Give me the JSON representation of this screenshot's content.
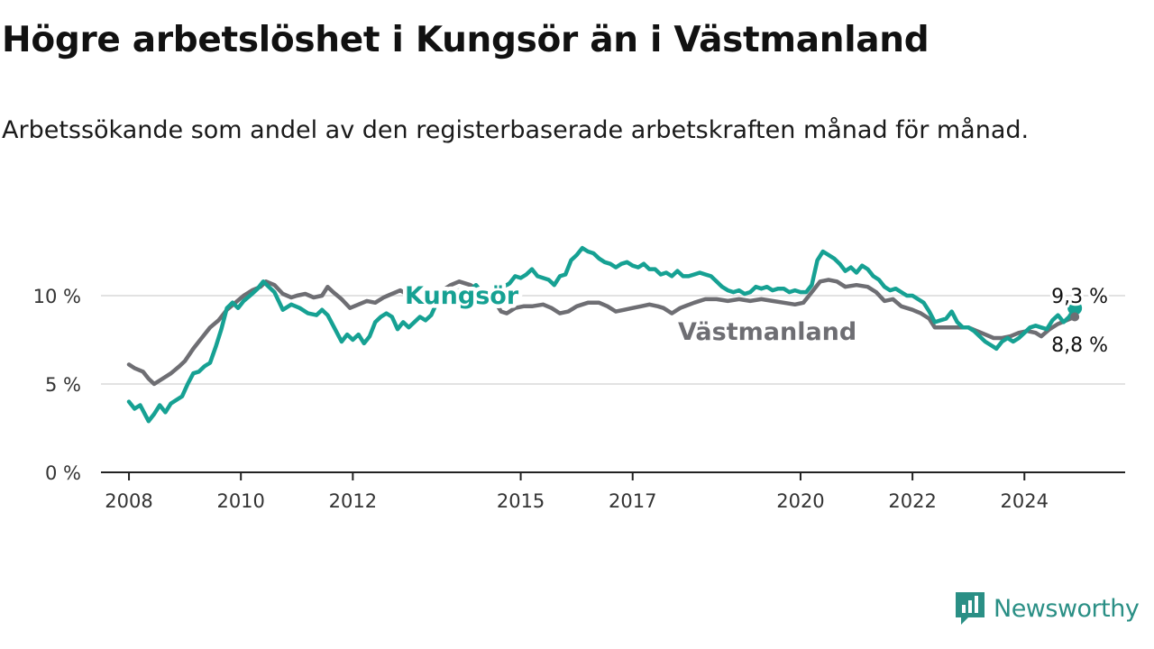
{
  "header": {
    "title": "Högre arbetslöshet i Kungsör än i Västmanland",
    "subtitle": "Arbetssökande som andel av den registerbaserade arbetskraften månad för månad."
  },
  "brand": {
    "name": "Newsworthy",
    "icon": "newsworthy-logo-icon",
    "color": "#2a8f85"
  },
  "chart_data": {
    "type": "line",
    "xlim": [
      2007.5,
      2025.8
    ],
    "ylim": [
      0,
      12.5
    ],
    "grid": true,
    "x_ticks": [
      {
        "value": 2008,
        "label": "2008"
      },
      {
        "value": 2010,
        "label": "2010"
      },
      {
        "value": 2012,
        "label": "2012"
      },
      {
        "value": 2015,
        "label": "2015"
      },
      {
        "value": 2017,
        "label": "2017"
      },
      {
        "value": 2020,
        "label": "2020"
      },
      {
        "value": 2022,
        "label": "2022"
      },
      {
        "value": 2024,
        "label": "2024"
      }
    ],
    "y_ticks": [
      {
        "value": 0,
        "label": "0 %"
      },
      {
        "value": 5,
        "label": "5 %"
      },
      {
        "value": 10,
        "label": "10 %"
      }
    ],
    "series": [
      {
        "name": "Västmanland",
        "color": "#6e6e73",
        "end_label": "8,8 %",
        "points": [
          [
            2008.0,
            6.1
          ],
          [
            2008.1,
            5.9
          ],
          [
            2008.25,
            5.7
          ],
          [
            2008.35,
            5.3
          ],
          [
            2008.45,
            5.0
          ],
          [
            2008.6,
            5.3
          ],
          [
            2008.75,
            5.6
          ],
          [
            2008.9,
            6.0
          ],
          [
            2009.0,
            6.3
          ],
          [
            2009.15,
            7.0
          ],
          [
            2009.3,
            7.6
          ],
          [
            2009.45,
            8.2
          ],
          [
            2009.6,
            8.6
          ],
          [
            2009.75,
            9.2
          ],
          [
            2009.9,
            9.6
          ],
          [
            2010.05,
            10.0
          ],
          [
            2010.2,
            10.3
          ],
          [
            2010.35,
            10.5
          ],
          [
            2010.45,
            10.8
          ],
          [
            2010.6,
            10.6
          ],
          [
            2010.75,
            10.1
          ],
          [
            2010.9,
            9.9
          ],
          [
            2011.0,
            10.0
          ],
          [
            2011.15,
            10.1
          ],
          [
            2011.3,
            9.9
          ],
          [
            2011.45,
            10.0
          ],
          [
            2011.55,
            10.5
          ],
          [
            2011.65,
            10.2
          ],
          [
            2011.8,
            9.8
          ],
          [
            2011.95,
            9.3
          ],
          [
            2012.1,
            9.5
          ],
          [
            2012.25,
            9.7
          ],
          [
            2012.4,
            9.6
          ],
          [
            2012.55,
            9.9
          ],
          [
            2012.7,
            10.1
          ],
          [
            2012.85,
            10.3
          ],
          [
            2013.0,
            10.0
          ],
          [
            2013.15,
            9.5
          ],
          [
            2013.3,
            9.6
          ],
          [
            2013.45,
            9.9
          ],
          [
            2013.6,
            10.3
          ],
          [
            2013.75,
            10.6
          ],
          [
            2013.9,
            10.8
          ],
          [
            2014.1,
            10.6
          ],
          [
            2014.3,
            10.2
          ],
          [
            2014.45,
            10.0
          ],
          [
            2014.55,
            9.6
          ],
          [
            2014.65,
            9.1
          ],
          [
            2014.75,
            9.0
          ],
          [
            2014.9,
            9.3
          ],
          [
            2015.05,
            9.4
          ],
          [
            2015.2,
            9.4
          ],
          [
            2015.4,
            9.5
          ],
          [
            2015.55,
            9.3
          ],
          [
            2015.7,
            9.0
          ],
          [
            2015.85,
            9.1
          ],
          [
            2016.0,
            9.4
          ],
          [
            2016.2,
            9.6
          ],
          [
            2016.4,
            9.6
          ],
          [
            2016.55,
            9.4
          ],
          [
            2016.7,
            9.1
          ],
          [
            2016.85,
            9.2
          ],
          [
            2017.0,
            9.3
          ],
          [
            2017.15,
            9.4
          ],
          [
            2017.3,
            9.5
          ],
          [
            2017.45,
            9.4
          ],
          [
            2017.55,
            9.3
          ],
          [
            2017.7,
            9.0
          ],
          [
            2017.85,
            9.3
          ],
          [
            2018.1,
            9.6
          ],
          [
            2018.3,
            9.8
          ],
          [
            2018.5,
            9.8
          ],
          [
            2018.7,
            9.7
          ],
          [
            2018.9,
            9.8
          ],
          [
            2019.1,
            9.7
          ],
          [
            2019.3,
            9.8
          ],
          [
            2019.5,
            9.7
          ],
          [
            2019.7,
            9.6
          ],
          [
            2019.9,
            9.5
          ],
          [
            2020.05,
            9.6
          ],
          [
            2020.2,
            10.2
          ],
          [
            2020.35,
            10.8
          ],
          [
            2020.5,
            10.9
          ],
          [
            2020.65,
            10.8
          ],
          [
            2020.8,
            10.5
          ],
          [
            2021.0,
            10.6
          ],
          [
            2021.2,
            10.5
          ],
          [
            2021.35,
            10.2
          ],
          [
            2021.5,
            9.7
          ],
          [
            2021.65,
            9.8
          ],
          [
            2021.8,
            9.4
          ],
          [
            2022.0,
            9.2
          ],
          [
            2022.15,
            9.0
          ],
          [
            2022.3,
            8.7
          ],
          [
            2022.4,
            8.2
          ],
          [
            2022.55,
            8.2
          ],
          [
            2022.7,
            8.2
          ],
          [
            2022.85,
            8.2
          ],
          [
            2023.0,
            8.2
          ],
          [
            2023.15,
            8.0
          ],
          [
            2023.3,
            7.8
          ],
          [
            2023.45,
            7.6
          ],
          [
            2023.6,
            7.6
          ],
          [
            2023.75,
            7.7
          ],
          [
            2023.9,
            7.9
          ],
          [
            2024.05,
            8.0
          ],
          [
            2024.2,
            7.9
          ],
          [
            2024.3,
            7.7
          ],
          [
            2024.45,
            8.1
          ],
          [
            2024.6,
            8.4
          ],
          [
            2024.75,
            8.6
          ],
          [
            2024.9,
            8.8
          ]
        ]
      },
      {
        "name": "Kungsör",
        "color": "#16a193",
        "end_label": "9,3 %",
        "points": [
          [
            2008.0,
            4.0
          ],
          [
            2008.1,
            3.6
          ],
          [
            2008.2,
            3.8
          ],
          [
            2008.3,
            3.2
          ],
          [
            2008.35,
            2.9
          ],
          [
            2008.45,
            3.3
          ],
          [
            2008.55,
            3.8
          ],
          [
            2008.65,
            3.4
          ],
          [
            2008.75,
            3.9
          ],
          [
            2008.85,
            4.1
          ],
          [
            2008.95,
            4.3
          ],
          [
            2009.05,
            5.0
          ],
          [
            2009.15,
            5.6
          ],
          [
            2009.25,
            5.7
          ],
          [
            2009.35,
            6.0
          ],
          [
            2009.45,
            6.2
          ],
          [
            2009.55,
            7.1
          ],
          [
            2009.65,
            8.1
          ],
          [
            2009.75,
            9.3
          ],
          [
            2009.85,
            9.6
          ],
          [
            2009.95,
            9.3
          ],
          [
            2010.05,
            9.7
          ],
          [
            2010.2,
            10.1
          ],
          [
            2010.3,
            10.4
          ],
          [
            2010.4,
            10.8
          ],
          [
            2010.5,
            10.5
          ],
          [
            2010.6,
            10.2
          ],
          [
            2010.75,
            9.2
          ],
          [
            2010.9,
            9.5
          ],
          [
            2011.05,
            9.3
          ],
          [
            2011.2,
            9.0
          ],
          [
            2011.35,
            8.9
          ],
          [
            2011.45,
            9.2
          ],
          [
            2011.55,
            8.9
          ],
          [
            2011.65,
            8.3
          ],
          [
            2011.8,
            7.4
          ],
          [
            2011.9,
            7.8
          ],
          [
            2012.0,
            7.5
          ],
          [
            2012.1,
            7.8
          ],
          [
            2012.2,
            7.3
          ],
          [
            2012.3,
            7.7
          ],
          [
            2012.4,
            8.5
          ],
          [
            2012.5,
            8.8
          ],
          [
            2012.6,
            9.0
          ],
          [
            2012.7,
            8.8
          ],
          [
            2012.8,
            8.1
          ],
          [
            2012.9,
            8.5
          ],
          [
            2013.0,
            8.2
          ],
          [
            2013.1,
            8.5
          ],
          [
            2013.2,
            8.8
          ],
          [
            2013.3,
            8.6
          ],
          [
            2013.4,
            8.9
          ],
          [
            2013.5,
            9.6
          ],
          [
            2013.6,
            9.6
          ],
          [
            2013.7,
            9.5
          ],
          [
            2013.8,
            10.0
          ],
          [
            2013.9,
            10.3
          ],
          [
            2014.0,
            10.1
          ],
          [
            2014.1,
            10.3
          ],
          [
            2014.2,
            10.6
          ],
          [
            2014.3,
            10.2
          ],
          [
            2014.4,
            10.0
          ],
          [
            2014.5,
            10.3
          ],
          [
            2014.6,
            10.6
          ],
          [
            2014.7,
            10.5
          ],
          [
            2014.8,
            10.7
          ],
          [
            2014.9,
            11.1
          ],
          [
            2015.0,
            11.0
          ],
          [
            2015.1,
            11.2
          ],
          [
            2015.2,
            11.5
          ],
          [
            2015.3,
            11.1
          ],
          [
            2015.4,
            11.0
          ],
          [
            2015.5,
            10.9
          ],
          [
            2015.6,
            10.6
          ],
          [
            2015.7,
            11.1
          ],
          [
            2015.8,
            11.2
          ],
          [
            2015.9,
            12.0
          ],
          [
            2016.0,
            12.3
          ],
          [
            2016.1,
            12.7
          ],
          [
            2016.2,
            12.5
          ],
          [
            2016.3,
            12.4
          ],
          [
            2016.4,
            12.1
          ],
          [
            2016.5,
            11.9
          ],
          [
            2016.6,
            11.8
          ],
          [
            2016.7,
            11.6
          ],
          [
            2016.8,
            11.8
          ],
          [
            2016.9,
            11.9
          ],
          [
            2017.0,
            11.7
          ],
          [
            2017.1,
            11.6
          ],
          [
            2017.2,
            11.8
          ],
          [
            2017.3,
            11.5
          ],
          [
            2017.4,
            11.5
          ],
          [
            2017.5,
            11.2
          ],
          [
            2017.6,
            11.3
          ],
          [
            2017.7,
            11.1
          ],
          [
            2017.8,
            11.4
          ],
          [
            2017.9,
            11.1
          ],
          [
            2018.0,
            11.1
          ],
          [
            2018.1,
            11.2
          ],
          [
            2018.2,
            11.3
          ],
          [
            2018.3,
            11.2
          ],
          [
            2018.4,
            11.1
          ],
          [
            2018.5,
            10.8
          ],
          [
            2018.6,
            10.5
          ],
          [
            2018.7,
            10.3
          ],
          [
            2018.8,
            10.2
          ],
          [
            2018.9,
            10.3
          ],
          [
            2019.0,
            10.1
          ],
          [
            2019.1,
            10.2
          ],
          [
            2019.2,
            10.5
          ],
          [
            2019.3,
            10.4
          ],
          [
            2019.4,
            10.5
          ],
          [
            2019.5,
            10.3
          ],
          [
            2019.6,
            10.4
          ],
          [
            2019.7,
            10.4
          ],
          [
            2019.8,
            10.2
          ],
          [
            2019.9,
            10.3
          ],
          [
            2020.0,
            10.2
          ],
          [
            2020.1,
            10.2
          ],
          [
            2020.2,
            10.6
          ],
          [
            2020.3,
            12.0
          ],
          [
            2020.4,
            12.5
          ],
          [
            2020.5,
            12.3
          ],
          [
            2020.6,
            12.1
          ],
          [
            2020.7,
            11.8
          ],
          [
            2020.8,
            11.4
          ],
          [
            2020.9,
            11.6
          ],
          [
            2021.0,
            11.3
          ],
          [
            2021.1,
            11.7
          ],
          [
            2021.2,
            11.5
          ],
          [
            2021.3,
            11.1
          ],
          [
            2021.4,
            10.9
          ],
          [
            2021.5,
            10.5
          ],
          [
            2021.6,
            10.3
          ],
          [
            2021.7,
            10.4
          ],
          [
            2021.8,
            10.2
          ],
          [
            2021.9,
            10.0
          ],
          [
            2022.0,
            10.0
          ],
          [
            2022.1,
            9.8
          ],
          [
            2022.2,
            9.6
          ],
          [
            2022.3,
            9.1
          ],
          [
            2022.4,
            8.5
          ],
          [
            2022.5,
            8.6
          ],
          [
            2022.6,
            8.7
          ],
          [
            2022.7,
            9.1
          ],
          [
            2022.8,
            8.5
          ],
          [
            2022.9,
            8.2
          ],
          [
            2023.0,
            8.2
          ],
          [
            2023.1,
            8.0
          ],
          [
            2023.2,
            7.7
          ],
          [
            2023.3,
            7.4
          ],
          [
            2023.4,
            7.2
          ],
          [
            2023.5,
            7.0
          ],
          [
            2023.6,
            7.4
          ],
          [
            2023.7,
            7.6
          ],
          [
            2023.8,
            7.4
          ],
          [
            2023.9,
            7.6
          ],
          [
            2024.0,
            7.9
          ],
          [
            2024.1,
            8.2
          ],
          [
            2024.2,
            8.3
          ],
          [
            2024.3,
            8.2
          ],
          [
            2024.4,
            8.1
          ],
          [
            2024.5,
            8.6
          ],
          [
            2024.6,
            8.9
          ],
          [
            2024.7,
            8.5
          ],
          [
            2024.8,
            8.8
          ],
          [
            2024.9,
            9.3
          ]
        ]
      }
    ]
  }
}
